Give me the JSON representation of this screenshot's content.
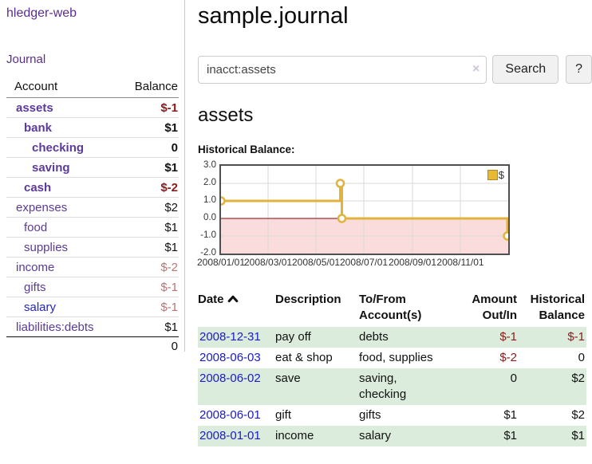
{
  "app": {
    "brand": "hledger-web"
  },
  "sidebar": {
    "journal_link": "Journal",
    "accounts_table": {
      "headers": {
        "account": "Account",
        "balance": "Balance"
      },
      "rows": [
        {
          "name": "assets",
          "level": 1,
          "bold": true,
          "balance": "$-1",
          "balance_style": "neg-strong"
        },
        {
          "name": "bank",
          "level": 2,
          "bold": true,
          "balance": "$1",
          "balance_style": "pos-strong"
        },
        {
          "name": "checking",
          "level": 3,
          "bold": true,
          "balance": "0",
          "balance_style": "pos-strong"
        },
        {
          "name": "saving",
          "level": 3,
          "bold": true,
          "balance": "$1",
          "balance_style": "pos-strong"
        },
        {
          "name": "cash",
          "level": 2,
          "bold": true,
          "balance": "$-2",
          "balance_style": "neg-strong"
        },
        {
          "name": "expenses",
          "level": 1,
          "bold": false,
          "balance": "$2",
          "balance_style": "pos"
        },
        {
          "name": "food",
          "level": 2,
          "bold": false,
          "balance": "$1",
          "balance_style": "pos"
        },
        {
          "name": "supplies",
          "level": 2,
          "bold": false,
          "balance": "$1",
          "balance_style": "pos"
        },
        {
          "name": "income",
          "level": 1,
          "bold": false,
          "balance": "$-2",
          "balance_style": "neg-soft"
        },
        {
          "name": "gifts",
          "level": 2,
          "bold": false,
          "balance": "$-1",
          "balance_style": "neg-soft"
        },
        {
          "name": "salary",
          "level": 2,
          "bold": false,
          "balance": "$-1",
          "balance_style": "neg-soft",
          "name_color": "blue"
        },
        {
          "name": "liabilities:debts",
          "level": 1,
          "bold": false,
          "balance": "$1",
          "balance_style": "pos"
        }
      ],
      "total": "0"
    }
  },
  "main": {
    "title": "sample.journal",
    "search": {
      "value": "inacct:assets",
      "clear_icon": "×",
      "search_button": "Search",
      "help_button": "?"
    },
    "account_heading": "assets",
    "chart_heading": "Historical Balance:"
  },
  "chart_data": {
    "type": "line",
    "subtype": "step",
    "title": "Historical Balance",
    "legend_entries": [
      {
        "label": "$",
        "color": "#e7ba35"
      }
    ],
    "legend_position": "top-right",
    "x_tick_labels": [
      "2008/01/01",
      "2008/03/01",
      "2008/05/01",
      "2008/07/01",
      "2008/09/01",
      "2008/11/01"
    ],
    "x_range": [
      "2008-01-01",
      "2009-01-01"
    ],
    "y_ticks": [
      3.0,
      2.0,
      1.0,
      0.0,
      -1.0,
      -2.0
    ],
    "ylim": [
      -2.0,
      3.0
    ],
    "grid": true,
    "series": [
      {
        "name": "$",
        "points": [
          [
            "2008-01-01",
            1
          ],
          [
            "2008-06-01",
            2
          ],
          [
            "2008-06-03",
            0
          ],
          [
            "2008-12-31",
            -1
          ]
        ]
      }
    ],
    "line_color": "#e2b33c",
    "marker_fill": "#ffffff",
    "negative_region_color": "#fbdcdc",
    "zero_line_color": "#8b0000",
    "gridline_color": "#d9d9d9"
  },
  "register_table": {
    "headers": {
      "date": "Date",
      "description": "Description",
      "accounts": "To/From Account(s)",
      "amount": "Amount Out/In",
      "balance": "Historical Balance"
    },
    "sort_icon": "chevron-up",
    "rows": [
      {
        "date": "2008-12-31",
        "description": "pay off",
        "accounts": "debts",
        "amount": "$-1",
        "amount_neg": true,
        "balance": "$-1",
        "balance_neg": true,
        "shaded": true
      },
      {
        "date": "2008-06-03",
        "description": "eat & shop",
        "accounts": "food, supplies",
        "amount": "$-2",
        "amount_neg": true,
        "balance": "0",
        "balance_neg": false,
        "shaded": false
      },
      {
        "date": "2008-06-02",
        "description": "save",
        "accounts": "saving, checking",
        "amount": "0",
        "amount_neg": false,
        "balance": "$2",
        "balance_neg": false,
        "shaded": true
      },
      {
        "date": "2008-06-01",
        "description": "gift",
        "accounts": "gifts",
        "amount": "$1",
        "amount_neg": false,
        "balance": "$2",
        "balance_neg": false,
        "shaded": false
      },
      {
        "date": "2008-01-01",
        "description": "income",
        "accounts": "salary",
        "amount": "$1",
        "amount_neg": false,
        "balance": "$1",
        "balance_neg": false,
        "shaded": true
      }
    ]
  }
}
